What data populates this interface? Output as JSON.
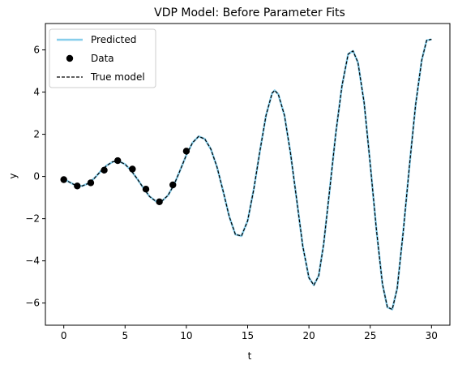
{
  "chart_data": {
    "type": "line",
    "title": "VDP Model: Before Parameter Fits",
    "xlabel": "t",
    "ylabel": "y",
    "xlim": [
      -1.5,
      31.5
    ],
    "ylim": [
      -7.05,
      7.25
    ],
    "xticks": [
      0,
      5,
      10,
      15,
      20,
      25,
      30
    ],
    "yticks": [
      -6,
      -4,
      -2,
      0,
      2,
      4,
      6
    ],
    "grid": false,
    "legend": {
      "position": "top-left",
      "entries": [
        "Predicted",
        "Data",
        "True model"
      ]
    },
    "colors": {
      "predicted": "#87ceeb",
      "data": "#000000",
      "true_model": "#000000"
    },
    "series": [
      {
        "name": "Predicted",
        "style": "solid",
        "x": [
          0,
          0.5,
          1,
          1.5,
          2,
          2.5,
          3,
          3.5,
          4,
          4.5,
          5,
          5.5,
          6,
          6.5,
          7,
          7.5,
          8,
          8.5,
          9,
          9.5,
          10,
          10.5,
          11,
          11.5,
          12,
          12.5,
          13,
          13.5,
          14,
          14.5,
          15,
          15.5,
          16,
          16.5,
          17,
          17.2,
          17.5,
          18,
          18.5,
          19,
          19.5,
          20,
          20.4,
          20.8,
          21.2,
          21.7,
          22.2,
          22.7,
          23.2,
          23.6,
          24,
          24.5,
          25,
          25.5,
          26,
          26.4,
          26.8,
          27.2,
          27.7,
          28.2,
          28.7,
          29.2,
          29.6,
          30
        ],
        "y": [
          -0.12,
          -0.28,
          -0.43,
          -0.45,
          -0.33,
          -0.08,
          0.24,
          0.52,
          0.7,
          0.72,
          0.58,
          0.28,
          -0.12,
          -0.55,
          -0.95,
          -1.17,
          -1.17,
          -0.9,
          -0.38,
          0.3,
          1.02,
          1.6,
          1.9,
          1.78,
          1.3,
          0.45,
          -0.7,
          -1.9,
          -2.75,
          -2.82,
          -2.1,
          -0.6,
          1.2,
          2.9,
          3.95,
          4.08,
          3.9,
          2.9,
          1.1,
          -1.1,
          -3.3,
          -4.8,
          -5.15,
          -4.7,
          -3.2,
          -0.6,
          2.1,
          4.3,
          5.8,
          5.95,
          5.4,
          3.5,
          0.6,
          -2.5,
          -5.1,
          -6.2,
          -6.3,
          -5.3,
          -2.6,
          0.5,
          3.4,
          5.5,
          6.45,
          6.5
        ]
      },
      {
        "name": "True model",
        "style": "dashed",
        "x": [
          0,
          0.5,
          1,
          1.5,
          2,
          2.5,
          3,
          3.5,
          4,
          4.5,
          5,
          5.5,
          6,
          6.5,
          7,
          7.5,
          8,
          8.5,
          9,
          9.5,
          10,
          10.5,
          11,
          11.5,
          12,
          12.5,
          13,
          13.5,
          14,
          14.5,
          15,
          15.5,
          16,
          16.5,
          17,
          17.2,
          17.5,
          18,
          18.5,
          19,
          19.5,
          20,
          20.4,
          20.8,
          21.2,
          21.7,
          22.2,
          22.7,
          23.2,
          23.6,
          24,
          24.5,
          25,
          25.5,
          26,
          26.4,
          26.8,
          27.2,
          27.7,
          28.2,
          28.7,
          29.2,
          29.6,
          30
        ],
        "y": [
          -0.12,
          -0.28,
          -0.43,
          -0.45,
          -0.33,
          -0.08,
          0.24,
          0.52,
          0.7,
          0.72,
          0.58,
          0.28,
          -0.12,
          -0.55,
          -0.95,
          -1.17,
          -1.17,
          -0.9,
          -0.38,
          0.3,
          1.02,
          1.6,
          1.9,
          1.78,
          1.3,
          0.45,
          -0.7,
          -1.9,
          -2.75,
          -2.82,
          -2.1,
          -0.6,
          1.2,
          2.9,
          3.95,
          4.08,
          3.9,
          2.9,
          1.1,
          -1.1,
          -3.3,
          -4.8,
          -5.15,
          -4.7,
          -3.2,
          -0.6,
          2.1,
          4.3,
          5.8,
          5.95,
          5.4,
          3.5,
          0.6,
          -2.5,
          -5.1,
          -6.2,
          -6.3,
          -5.3,
          -2.6,
          0.5,
          3.4,
          5.5,
          6.45,
          6.5
        ]
      },
      {
        "name": "Data",
        "style": "points",
        "x": [
          0,
          1.1,
          2.2,
          3.3,
          4.4,
          5.6,
          6.7,
          7.8,
          8.9,
          10
        ],
        "y": [
          -0.15,
          -0.45,
          -0.3,
          0.3,
          0.75,
          0.35,
          -0.6,
          -1.2,
          -0.4,
          1.2
        ]
      }
    ]
  }
}
